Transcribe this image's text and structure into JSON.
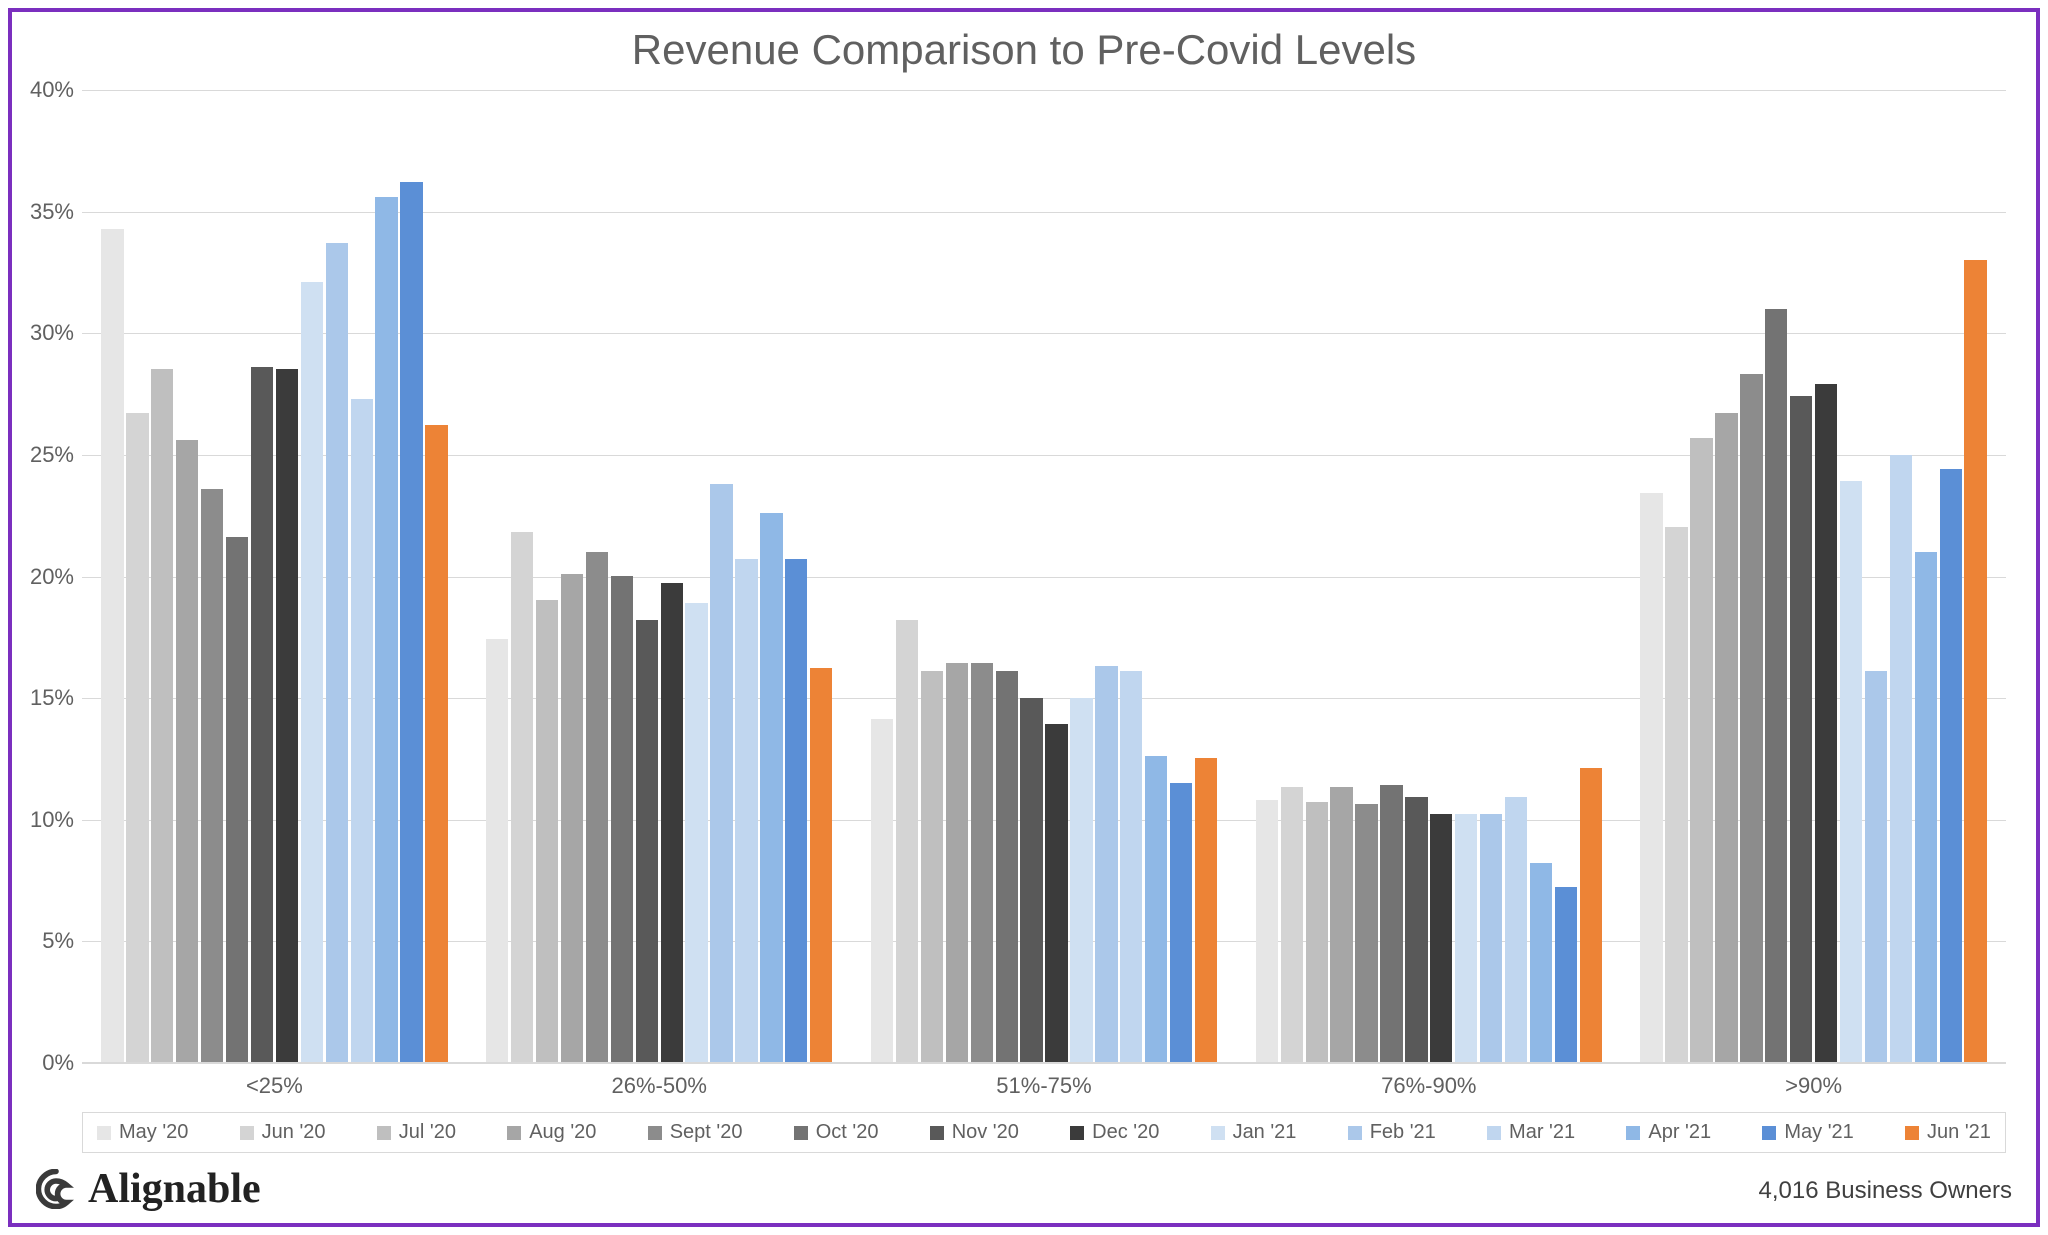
{
  "chart": {
    "type": "grouped-bar",
    "title": "Revenue Comparison to Pre-Covid Levels",
    "title_fontsize": 42,
    "title_color": "#606060",
    "background_color": "#ffffff",
    "frame_border_color": "#7b2fbf",
    "grid_color": "#d9d9d9",
    "axis_label_color": "#606060",
    "axis_label_fontsize": 22,
    "y": {
      "min": 0,
      "max": 40,
      "tick_step": 5,
      "ticks": [
        0,
        5,
        10,
        15,
        20,
        25,
        30,
        35,
        40
      ],
      "tick_labels": [
        "0%",
        "5%",
        "10%",
        "15%",
        "20%",
        "25%",
        "30%",
        "35%",
        "40%"
      ],
      "format": "percent"
    },
    "categories": [
      "<25%",
      "26%-50%",
      "51%-75%",
      "76%-90%",
      ">90%"
    ],
    "series": [
      {
        "label": "May '20",
        "color": "#e6e6e6"
      },
      {
        "label": "Jun '20",
        "color": "#d4d4d4"
      },
      {
        "label": "Jul '20",
        "color": "#bfbfbf"
      },
      {
        "label": "Aug '20",
        "color": "#a6a6a6"
      },
      {
        "label": "Sept '20",
        "color": "#8c8c8c"
      },
      {
        "label": "Oct '20",
        "color": "#737373"
      },
      {
        "label": "Nov '20",
        "color": "#595959"
      },
      {
        "label": "Dec '20",
        "color": "#3b3b3b"
      },
      {
        "label": "Jan '21",
        "color": "#cfe0f2"
      },
      {
        "label": "Feb '21",
        "color": "#abc8ea"
      },
      {
        "label": "Mar '21",
        "color": "#c0d6ef"
      },
      {
        "label": "Apr '21",
        "color": "#8fb8e6"
      },
      {
        "label": "May '21",
        "color": "#5b8fd6"
      },
      {
        "label": "Jun '21",
        "color": "#ed8336"
      }
    ],
    "values": [
      [
        34.3,
        26.7,
        28.5,
        25.6,
        23.6,
        21.6,
        28.6,
        28.5,
        32.1,
        33.7,
        27.3,
        35.6,
        36.2,
        26.2
      ],
      [
        17.4,
        21.8,
        19.0,
        20.1,
        21.0,
        20.0,
        18.2,
        19.7,
        18.9,
        23.8,
        20.7,
        22.6,
        20.7,
        16.2
      ],
      [
        14.1,
        18.2,
        16.1,
        16.4,
        16.4,
        16.1,
        15.0,
        13.9,
        15.0,
        16.3,
        16.1,
        12.6,
        11.5,
        12.5
      ],
      [
        10.8,
        11.3,
        10.7,
        11.3,
        10.6,
        11.4,
        10.9,
        10.2,
        10.2,
        10.2,
        10.9,
        8.2,
        7.2,
        12.1
      ],
      [
        23.4,
        22.0,
        25.7,
        26.7,
        28.3,
        31.0,
        27.4,
        27.9,
        23.9,
        16.1,
        25.0,
        21.0,
        24.4,
        33.0
      ]
    ],
    "legend_border_color": "#d9d9d9",
    "legend_fontsize": 20
  },
  "brand": {
    "name": "Alignable",
    "mark_color": "#3a3a3a"
  },
  "footnote": "4,016 Business Owners"
}
